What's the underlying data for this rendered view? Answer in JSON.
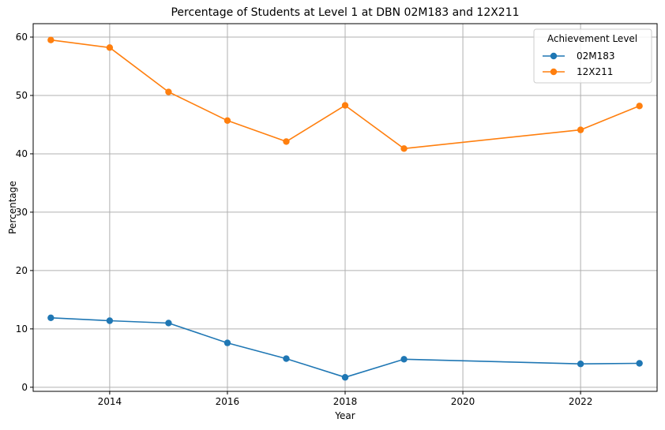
{
  "chart_data": {
    "type": "line",
    "title": "Percentage of Students at Level 1 at DBN 02M183 and 12X211",
    "xlabel": "Year",
    "ylabel": "Percentage",
    "xlim": [
      2012.7,
      2023.3
    ],
    "ylim": [
      -0.7,
      62.3
    ],
    "xticks": [
      2014,
      2016,
      2018,
      2020,
      2022
    ],
    "yticks": [
      0,
      10,
      20,
      30,
      40,
      50,
      60
    ],
    "grid": true,
    "legend": {
      "title": "Achievement Level",
      "placement": "top-right"
    },
    "series": [
      {
        "name": "02M183",
        "color": "#1f77b4",
        "x": [
          2013,
          2014,
          2015,
          2016,
          2017,
          2018,
          2019,
          2022,
          2023
        ],
        "y": [
          11.9,
          11.4,
          11.0,
          7.6,
          4.9,
          1.7,
          4.8,
          4.0,
          4.1
        ]
      },
      {
        "name": "12X211",
        "color": "#ff7f0e",
        "x": [
          2013,
          2014,
          2015,
          2016,
          2017,
          2018,
          2019,
          2022,
          2023
        ],
        "y": [
          59.5,
          58.2,
          50.6,
          45.7,
          42.1,
          48.3,
          40.9,
          44.1,
          48.2
        ]
      }
    ]
  }
}
